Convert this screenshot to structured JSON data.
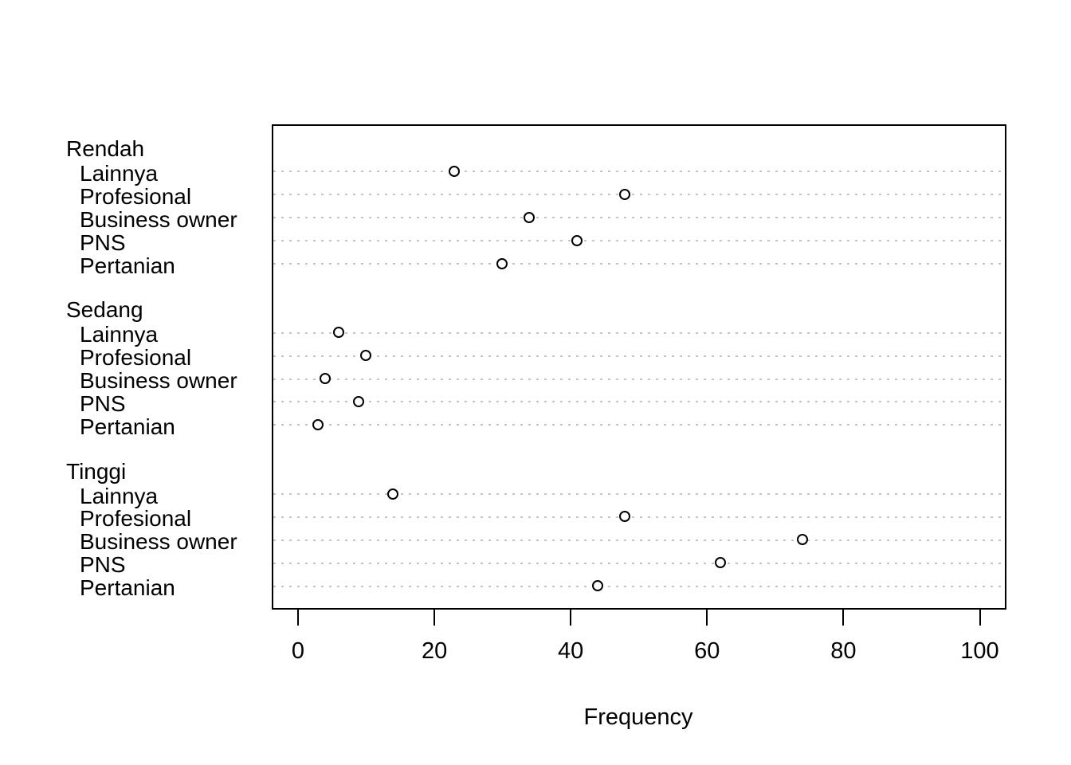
{
  "chart_data": {
    "type": "scatter",
    "variant": "grouped-dotchart",
    "title": "",
    "xlabel": "Frequency",
    "ylabel": "",
    "xlim": [
      0,
      100
    ],
    "xticks": [
      0,
      20,
      40,
      60,
      80,
      100
    ],
    "grid": "dotted horizontal line per category row",
    "legend": "none",
    "marker": "open-circle",
    "groups": [
      {
        "name": "Rendah",
        "categories": [
          "Lainnya",
          "Profesional",
          "Business owner",
          "PNS",
          "Pertanian"
        ],
        "values": [
          23,
          48,
          34,
          41,
          30
        ]
      },
      {
        "name": "Sedang",
        "categories": [
          "Lainnya",
          "Profesional",
          "Business owner",
          "PNS",
          "Pertanian"
        ],
        "values": [
          6,
          10,
          4,
          9,
          3
        ]
      },
      {
        "name": "Tinggi",
        "categories": [
          "Lainnya",
          "Profesional",
          "Business owner",
          "PNS",
          "Pertanian"
        ],
        "values": [
          14,
          48,
          74,
          62,
          44
        ]
      }
    ],
    "colors": {
      "background": "#ffffff",
      "axis": "#000000",
      "point_stroke": "#000000",
      "point_fill": "#ffffff",
      "gridline": "#c4c4c4",
      "text": "#000000"
    }
  }
}
